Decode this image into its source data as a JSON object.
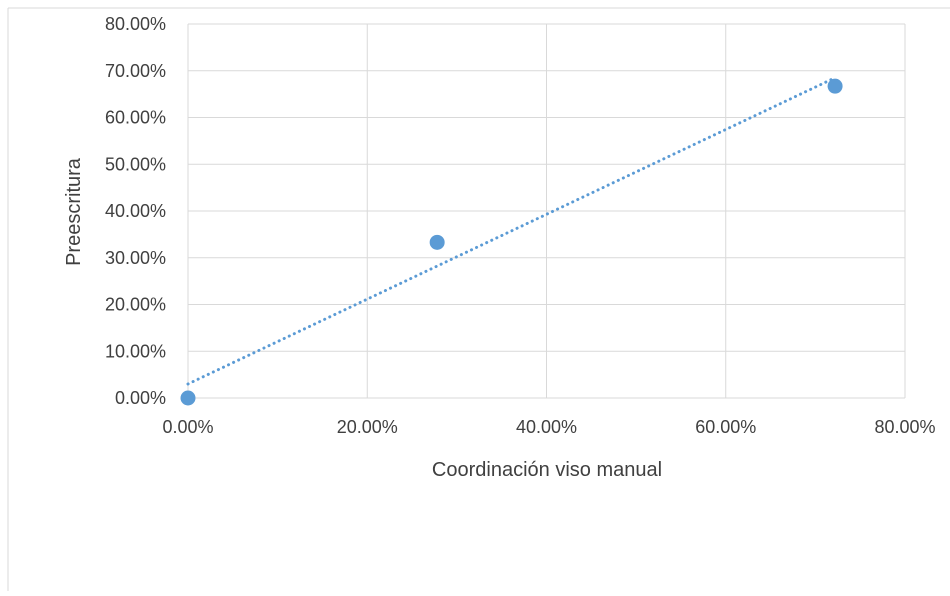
{
  "chart_data": {
    "type": "scatter",
    "title": "",
    "xlabel": "Coordinación viso manual",
    "ylabel": "Preescritura",
    "xlim": [
      0,
      0.8
    ],
    "ylim": [
      0,
      0.8
    ],
    "x_ticks": [
      "0.00%",
      "20.00%",
      "40.00%",
      "60.00%",
      "80.00%"
    ],
    "y_ticks": [
      "0.00%",
      "10.00%",
      "20.00%",
      "30.00%",
      "40.00%",
      "50.00%",
      "60.00%",
      "70.00%",
      "80.00%"
    ],
    "grid": true,
    "legend": "none",
    "series": [
      {
        "x": [
          0.0,
          0.278,
          0.722
        ],
        "y": [
          0.0,
          0.333,
          0.667
        ],
        "color": "#5b9bd5",
        "trendline": {
          "type": "linear",
          "style": "dotted",
          "x_range": [
            0.0,
            0.722
          ],
          "y_range": [
            0.03,
            0.685
          ]
        }
      }
    ]
  }
}
